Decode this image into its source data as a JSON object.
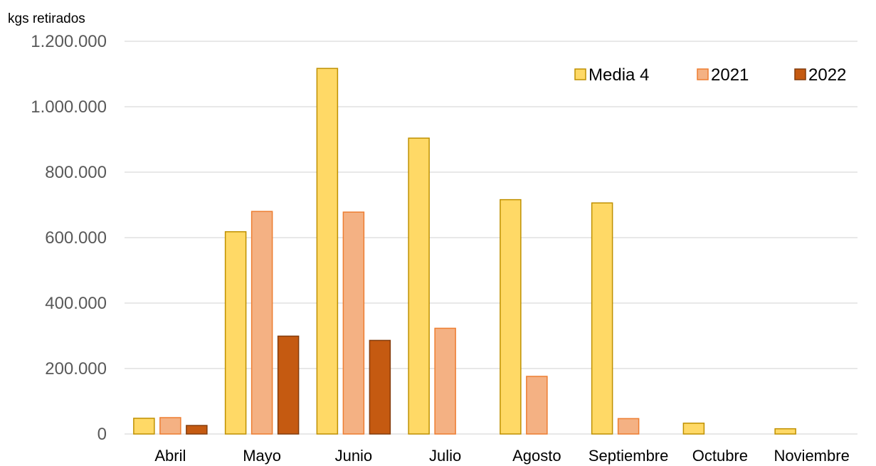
{
  "chart_data": {
    "type": "bar",
    "ylabel": "kgs retirados",
    "categories": [
      "Abril",
      "Mayo",
      "Junio",
      "Julio",
      "Agosto",
      "Septiembre",
      "Octubre",
      "Noviembre"
    ],
    "ylim": [
      0,
      1200000
    ],
    "yticks": [
      0,
      200000,
      400000,
      600000,
      800000,
      1000000,
      1200000
    ],
    "ytick_labels": [
      "0",
      "200.000",
      "400.000",
      "600.000",
      "800.000",
      "1.000.000",
      "1.200.000"
    ],
    "grid": true,
    "legend_position": "top-right",
    "series": [
      {
        "name": "Media 4",
        "color": "#FFD966",
        "stroke": "#BF9000",
        "values": [
          48000,
          618000,
          1117000,
          904000,
          716000,
          706000,
          33000,
          16000
        ]
      },
      {
        "name": "2021",
        "color": "#F4B183",
        "stroke": "#ED7D31",
        "values": [
          50000,
          680000,
          678000,
          323000,
          176000,
          47000,
          null,
          null
        ]
      },
      {
        "name": "2022",
        "color": "#C55A11",
        "stroke": "#843C0C",
        "values": [
          26000,
          299000,
          286000,
          null,
          null,
          null,
          null,
          null
        ]
      }
    ]
  }
}
